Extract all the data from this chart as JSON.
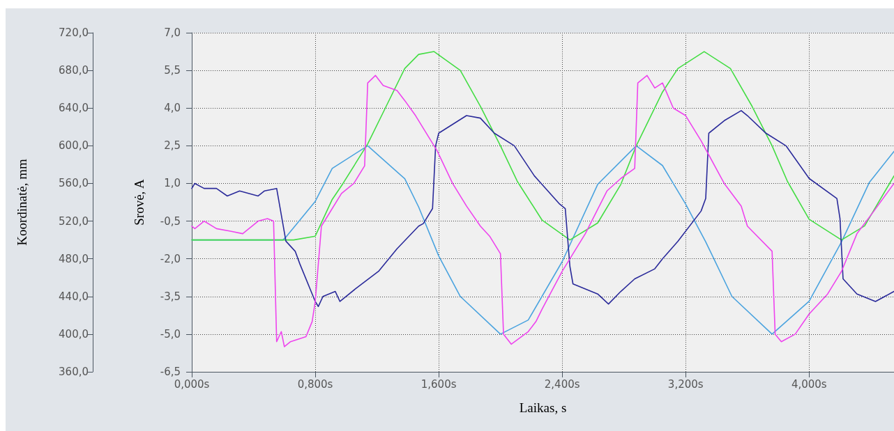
{
  "chart_data": {
    "type": "line",
    "xlabel": "Laikas, s",
    "ylabel": "Srovė, A",
    "y2label": "Koordinatė, mm",
    "xlim": [
      0,
      4.55
    ],
    "xticks": [
      {
        "value": 0,
        "label": "0,000s"
      },
      {
        "value": 0.8,
        "label": "0,800s"
      },
      {
        "value": 1.6,
        "label": "1,600s"
      },
      {
        "value": 2.4,
        "label": "2,400s"
      },
      {
        "value": 3.2,
        "label": "3,200s"
      },
      {
        "value": 4.0,
        "label": "4,000s"
      }
    ],
    "ylim": [
      -6.5,
      7
    ],
    "yticks": [
      {
        "value": -6.5,
        "label": "-6,5"
      },
      {
        "value": -5,
        "label": "-5,0"
      },
      {
        "value": -3.5,
        "label": "-3,5"
      },
      {
        "value": -2,
        "label": "-2,0"
      },
      {
        "value": -0.5,
        "label": "-0,5"
      },
      {
        "value": 1,
        "label": "1,0"
      },
      {
        "value": 2.5,
        "label": "2,5"
      },
      {
        "value": 4,
        "label": "4,0"
      },
      {
        "value": 5.5,
        "label": "5,5"
      },
      {
        "value": 7,
        "label": "7,0"
      }
    ],
    "y2lim": [
      360,
      720
    ],
    "y2ticks": [
      {
        "value": 360,
        "label": "360,0"
      },
      {
        "value": 400,
        "label": "400,0"
      },
      {
        "value": 440,
        "label": "440,0"
      },
      {
        "value": 480,
        "label": "480,0"
      },
      {
        "value": 520,
        "label": "520,0"
      },
      {
        "value": 560,
        "label": "560,0"
      },
      {
        "value": 600,
        "label": "600,0"
      },
      {
        "value": 640,
        "label": "640,0"
      },
      {
        "value": 680,
        "label": "680,0"
      },
      {
        "value": 720,
        "label": "720,0"
      }
    ],
    "grid": true,
    "marker": "none",
    "line_style": "solid",
    "series": [
      {
        "color": "#4aa3df",
        "axis": "y2",
        "x": [
          0,
          0.59,
          0.61,
          0.8,
          0.91,
          1.14,
          1.38,
          1.47,
          1.6,
          1.74,
          2.0,
          2.18,
          2.4,
          2.63,
          2.88,
          3.05,
          3.2,
          3.33,
          3.5,
          3.76,
          4.0,
          4.21,
          4.39,
          4.55
        ],
        "values": [
          500,
          500,
          503,
          541,
          576,
          600,
          565,
          535,
          483,
          440,
          400,
          415,
          477,
          559,
          600,
          579,
          538,
          498,
          440,
          400,
          435,
          498,
          561,
          594
        ]
      },
      {
        "color": "#44dd44",
        "axis": "y2",
        "x": [
          0,
          0.59,
          0.66,
          0.8,
          0.91,
          0.98,
          1.14,
          1.26,
          1.38,
          1.47,
          1.57,
          1.74,
          1.87,
          2.0,
          2.11,
          2.27,
          2.45,
          2.63,
          2.78,
          2.88,
          3.05,
          3.15,
          3.32,
          3.49,
          3.63,
          3.76,
          3.86,
          4.0,
          4.21,
          4.36,
          4.55
        ],
        "values": [
          500,
          500,
          500,
          504,
          543,
          560,
          602,
          642,
          682,
          697,
          700,
          680,
          642,
          600,
          562,
          521,
          500,
          518,
          559,
          600,
          657,
          682,
          700,
          682,
          642,
          600,
          562,
          522,
          500,
          515,
          568
        ]
      },
      {
        "color": "#2a2a9a",
        "x": [
          0,
          0.02,
          0.08,
          0.16,
          0.23,
          0.31,
          0.43,
          0.47,
          0.55,
          0.61,
          0.67,
          0.7,
          0.8,
          0.82,
          0.85,
          0.93,
          0.96,
          1.06,
          1.21,
          1.33,
          1.47,
          1.5,
          1.56,
          1.58,
          1.6,
          1.78,
          1.87,
          1.96,
          2.09,
          2.22,
          2.38,
          2.42,
          2.45,
          2.47,
          2.63,
          2.7,
          2.78,
          2.87,
          3.0,
          3.05,
          3.15,
          3.3,
          3.33,
          3.35,
          3.45,
          3.56,
          3.6,
          3.72,
          3.85,
          4.0,
          4.18,
          4.2,
          4.22,
          4.31,
          4.43,
          4.55
        ],
        "values": [
          0.8,
          1.0,
          0.8,
          0.8,
          0.5,
          0.7,
          0.5,
          0.7,
          0.8,
          -1.3,
          -1.7,
          -2.2,
          -3.7,
          -3.9,
          -3.5,
          -3.3,
          -3.7,
          -3.2,
          -2.5,
          -1.6,
          -0.7,
          -0.6,
          0.0,
          2.5,
          3.0,
          3.7,
          3.6,
          3.0,
          2.5,
          1.3,
          0.2,
          0.0,
          -2.3,
          -3.0,
          -3.4,
          -3.8,
          -3.3,
          -2.8,
          -2.4,
          -2.0,
          -1.3,
          -0.1,
          0.4,
          3.0,
          3.5,
          3.9,
          3.7,
          3.0,
          2.5,
          1.2,
          0.4,
          -0.4,
          -2.8,
          -3.4,
          -3.7,
          -3.3
        ]
      },
      {
        "color": "#ee44ee",
        "x": [
          0,
          0.02,
          0.08,
          0.16,
          0.25,
          0.33,
          0.43,
          0.49,
          0.53,
          0.55,
          0.58,
          0.6,
          0.64,
          0.74,
          0.78,
          0.8,
          0.84,
          0.89,
          0.97,
          1.05,
          1.12,
          1.14,
          1.19,
          1.24,
          1.33,
          1.38,
          1.45,
          1.59,
          1.69,
          1.78,
          1.87,
          1.93,
          2.0,
          2.02,
          2.07,
          2.18,
          2.23,
          2.27,
          2.4,
          2.55,
          2.69,
          2.78,
          2.87,
          2.89,
          2.95,
          3.0,
          3.05,
          3.12,
          3.2,
          3.3,
          3.45,
          3.56,
          3.6,
          3.76,
          3.78,
          3.82,
          3.91,
          4.0,
          4.12,
          4.21,
          4.31,
          4.42,
          4.55
        ],
        "values": [
          -0.7,
          -0.8,
          -0.5,
          -0.8,
          -0.9,
          -1.0,
          -0.5,
          -0.4,
          -0.5,
          -5.3,
          -4.9,
          -5.5,
          -5.3,
          -5.1,
          -4.5,
          -3.7,
          -0.7,
          -0.2,
          0.6,
          1.0,
          1.7,
          5.0,
          5.3,
          4.9,
          4.7,
          4.3,
          3.7,
          2.3,
          1.0,
          0.1,
          -0.7,
          -1.1,
          -1.8,
          -5.0,
          -5.4,
          -4.9,
          -4.5,
          -4.0,
          -2.5,
          -1.0,
          0.7,
          1.2,
          1.6,
          5.0,
          5.3,
          4.8,
          5.0,
          4.0,
          3.7,
          2.7,
          1.0,
          0.1,
          -0.7,
          -1.7,
          -5.0,
          -5.3,
          -5.0,
          -4.2,
          -3.4,
          -2.5,
          -1.0,
          -0.1,
          1.0
        ]
      }
    ]
  }
}
